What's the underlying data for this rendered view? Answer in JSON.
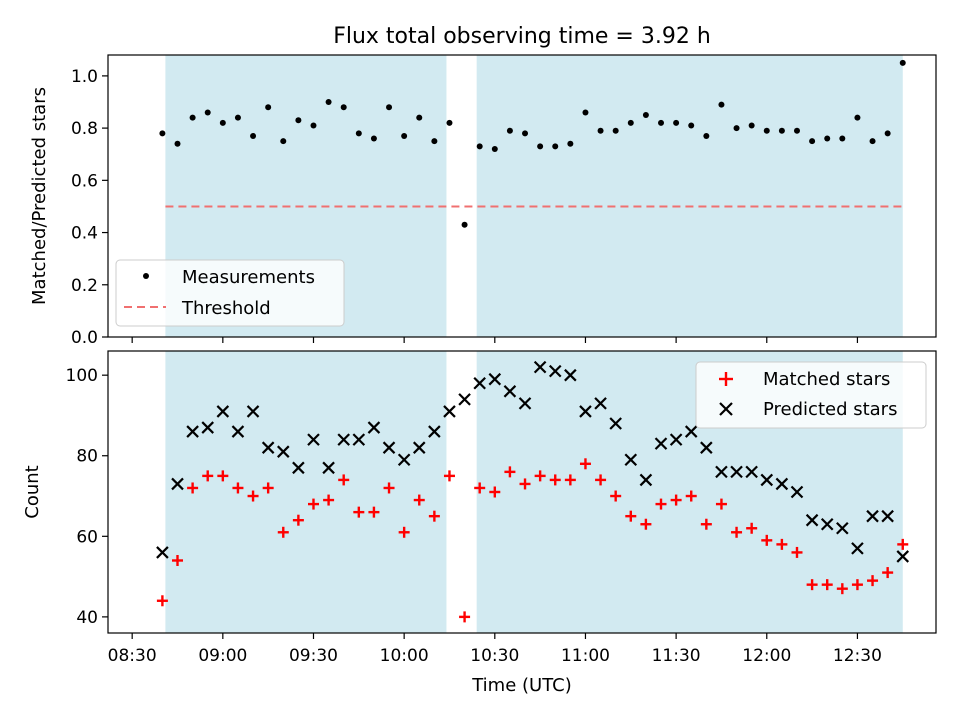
{
  "title": "Flux total observing time = 3.92 h",
  "colors": {
    "shade": "#add8e6",
    "measurement": "#000000",
    "threshold": "#f07070",
    "matched": "#ff0000",
    "predicted": "#000000"
  },
  "chart_data": [
    {
      "type": "scatter",
      "ylabel": "Matched/Predicted stars",
      "ylim": [
        0,
        1.08
      ],
      "yticks": [
        "0.0",
        "0.2",
        "0.4",
        "0.6",
        "0.8",
        "1.0"
      ],
      "legend": {
        "position": "lower-left",
        "entries": [
          "Measurements",
          "Threshold"
        ]
      },
      "threshold": 0.5,
      "shaded_intervals": [
        [
          "08:41",
          "10:14"
        ],
        [
          "10:24",
          "12:45"
        ]
      ],
      "series": [
        {
          "name": "Measurements",
          "marker": "dot",
          "x": [
            "08:40",
            "08:45",
            "08:50",
            "08:55",
            "09:00",
            "09:05",
            "09:10",
            "09:15",
            "09:20",
            "09:25",
            "09:30",
            "09:35",
            "09:40",
            "09:45",
            "09:50",
            "09:55",
            "10:00",
            "10:05",
            "10:10",
            "10:15",
            "10:20",
            "10:25",
            "10:30",
            "10:35",
            "10:40",
            "10:45",
            "10:50",
            "10:55",
            "11:00",
            "11:05",
            "11:10",
            "11:15",
            "11:20",
            "11:25",
            "11:30",
            "11:35",
            "11:40",
            "11:45",
            "11:50",
            "11:55",
            "12:00",
            "12:05",
            "12:10",
            "12:15",
            "12:20",
            "12:25",
            "12:30",
            "12:35",
            "12:40",
            "12:45"
          ],
          "y": [
            0.78,
            0.74,
            0.84,
            0.86,
            0.82,
            0.84,
            0.77,
            0.88,
            0.75,
            0.83,
            0.81,
            0.9,
            0.88,
            0.78,
            0.76,
            0.88,
            0.77,
            0.84,
            0.75,
            0.82,
            0.43,
            0.73,
            0.72,
            0.79,
            0.78,
            0.73,
            0.73,
            0.74,
            0.86,
            0.79,
            0.79,
            0.82,
            0.85,
            0.82,
            0.82,
            0.81,
            0.77,
            0.89,
            0.8,
            0.81,
            0.79,
            0.79,
            0.79,
            0.75,
            0.76,
            0.76,
            0.84,
            0.75,
            0.78,
            1.05
          ]
        }
      ]
    },
    {
      "type": "scatter",
      "xlabel": "Time (UTC)",
      "ylabel": "Count",
      "ylim": [
        36,
        106
      ],
      "yticks": [
        "40",
        "60",
        "80",
        "100"
      ],
      "xticks": [
        "08:30",
        "09:00",
        "09:30",
        "10:00",
        "10:30",
        "11:00",
        "11:30",
        "12:00",
        "12:30"
      ],
      "legend": {
        "position": "upper-right",
        "entries": [
          "Matched stars",
          "Predicted stars"
        ]
      },
      "shaded_intervals": [
        [
          "08:41",
          "10:14"
        ],
        [
          "10:24",
          "12:45"
        ]
      ],
      "series": [
        {
          "name": "Matched stars",
          "marker": "plus",
          "x": [
            "08:40",
            "08:45",
            "08:50",
            "08:55",
            "09:00",
            "09:05",
            "09:10",
            "09:15",
            "09:20",
            "09:25",
            "09:30",
            "09:35",
            "09:40",
            "09:45",
            "09:50",
            "09:55",
            "10:00",
            "10:05",
            "10:10",
            "10:15",
            "10:20",
            "10:25",
            "10:30",
            "10:35",
            "10:40",
            "10:45",
            "10:50",
            "10:55",
            "11:00",
            "11:05",
            "11:10",
            "11:15",
            "11:20",
            "11:25",
            "11:30",
            "11:35",
            "11:40",
            "11:45",
            "11:50",
            "11:55",
            "12:00",
            "12:05",
            "12:10",
            "12:15",
            "12:20",
            "12:25",
            "12:30",
            "12:35",
            "12:40",
            "12:45"
          ],
          "y": [
            44,
            54,
            72,
            75,
            75,
            72,
            70,
            72,
            61,
            64,
            68,
            69,
            74,
            66,
            66,
            72,
            61,
            69,
            65,
            75,
            40,
            72,
            71,
            76,
            73,
            75,
            74,
            74,
            78,
            74,
            70,
            65,
            63,
            68,
            69,
            70,
            63,
            68,
            61,
            62,
            59,
            58,
            56,
            48,
            48,
            47,
            48,
            49,
            51,
            58
          ]
        },
        {
          "name": "Predicted stars",
          "marker": "x",
          "x": [
            "08:40",
            "08:45",
            "08:50",
            "08:55",
            "09:00",
            "09:05",
            "09:10",
            "09:15",
            "09:20",
            "09:25",
            "09:30",
            "09:35",
            "09:40",
            "09:45",
            "09:50",
            "09:55",
            "10:00",
            "10:05",
            "10:10",
            "10:15",
            "10:20",
            "10:25",
            "10:30",
            "10:35",
            "10:40",
            "10:45",
            "10:50",
            "10:55",
            "11:00",
            "11:05",
            "11:10",
            "11:15",
            "11:20",
            "11:25",
            "11:30",
            "11:35",
            "11:40",
            "11:45",
            "11:50",
            "11:55",
            "12:00",
            "12:05",
            "12:10",
            "12:15",
            "12:20",
            "12:25",
            "12:30",
            "12:35",
            "12:40",
            "12:45"
          ],
          "y": [
            56,
            73,
            86,
            87,
            91,
            86,
            91,
            82,
            81,
            77,
            84,
            77,
            84,
            84,
            87,
            82,
            79,
            82,
            86,
            91,
            94,
            98,
            99,
            96,
            93,
            102,
            101,
            100,
            91,
            93,
            88,
            79,
            74,
            83,
            84,
            86,
            82,
            76,
            76,
            76,
            74,
            73,
            71,
            64,
            63,
            62,
            57,
            65,
            65,
            55
          ]
        }
      ]
    }
  ]
}
